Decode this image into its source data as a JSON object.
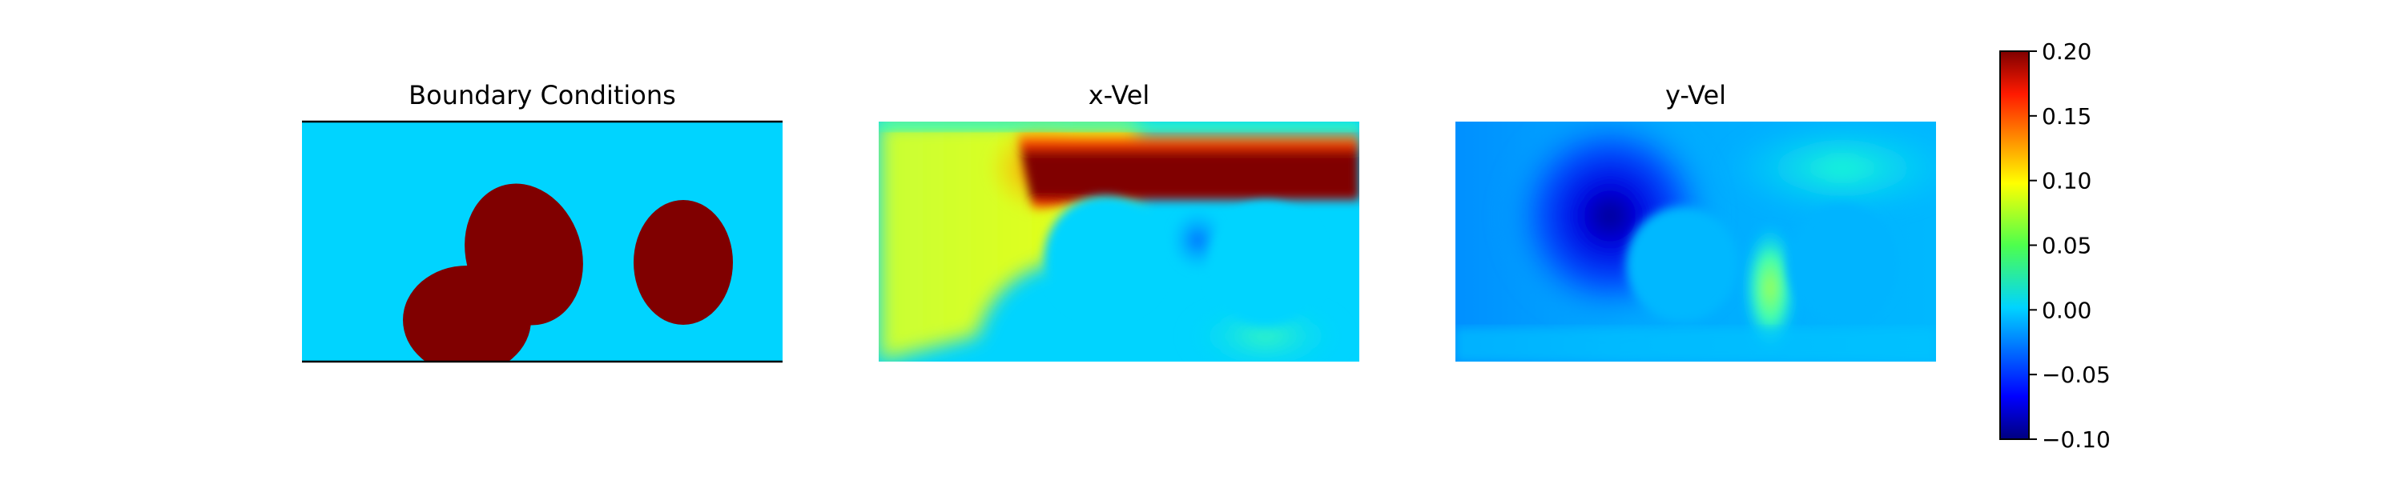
{
  "chart_data": [
    {
      "type": "heatmap",
      "title": "Boundary Conditions",
      "colors": {
        "fluid": "#00d4ff",
        "obstacle": "#800000"
      },
      "frame_lines": "top-and-bottom"
    },
    {
      "type": "heatmap",
      "title": "x-Vel"
    },
    {
      "type": "heatmap",
      "title": "y-Vel"
    }
  ],
  "colorbar": {
    "colormap": "jet",
    "range": [
      -0.1,
      0.2
    ],
    "ticks": [
      {
        "value": 0.2,
        "label": "0.20"
      },
      {
        "value": 0.15,
        "label": "0.15"
      },
      {
        "value": 0.1,
        "label": "0.10"
      },
      {
        "value": 0.05,
        "label": "0.05"
      },
      {
        "value": 0.0,
        "label": "0.00"
      },
      {
        "value": -0.05,
        "label": "−0.05"
      },
      {
        "value": -0.1,
        "label": "−0.10"
      }
    ]
  },
  "panels": {
    "bc_title": "Boundary Conditions",
    "xvel_title": "x-Vel",
    "yvel_title": "y-Vel"
  }
}
